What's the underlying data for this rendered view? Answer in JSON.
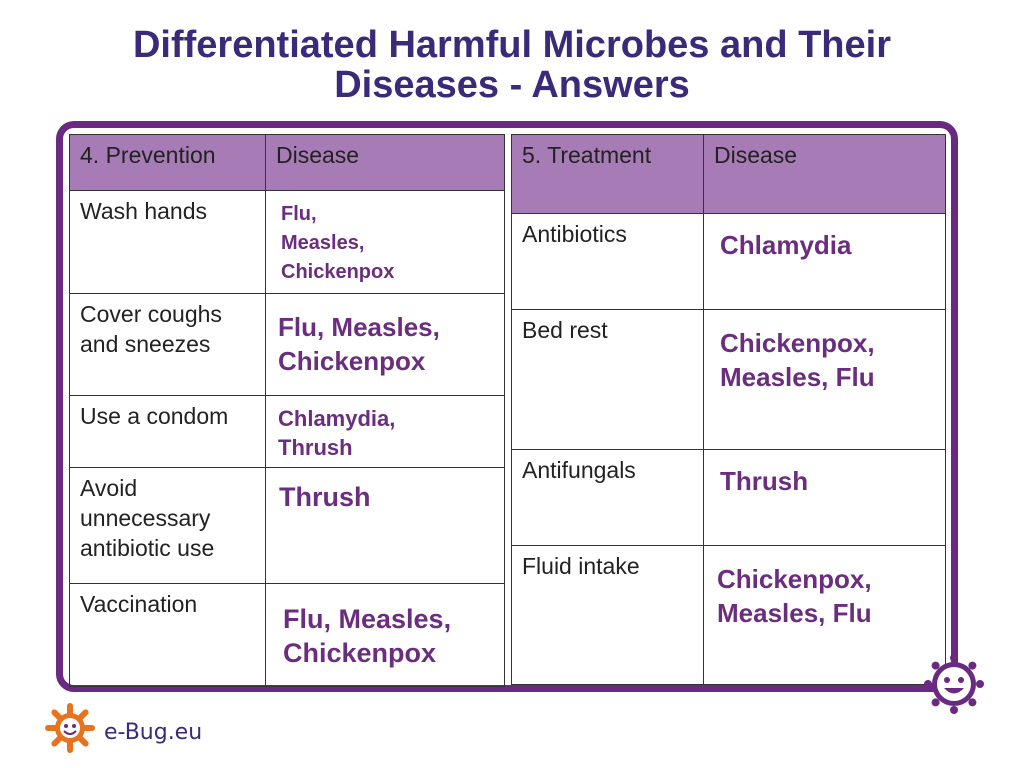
{
  "title": {
    "line1": "Differentiated Harmful Microbes and Their",
    "line2": "Diseases - Answers"
  },
  "prevention_table": {
    "header": [
      "4. Prevention",
      "Disease"
    ],
    "rows": [
      {
        "action": "Wash hands",
        "disease": [
          "Flu,",
          "Measles,",
          "Chickenpox"
        ]
      },
      {
        "action": [
          "Cover coughs",
          "and sneezes"
        ],
        "disease": [
          "Flu, Measles,",
          "Chickenpox"
        ]
      },
      {
        "action": "Use a condom",
        "disease": [
          "Chlamydia,",
          "Thrush"
        ]
      },
      {
        "action": [
          "Avoid",
          "unnecessary",
          "antibiotic use"
        ],
        "disease": "Thrush"
      },
      {
        "action": "Vaccination",
        "disease": [
          "Flu, Measles,",
          "Chickenpox"
        ]
      }
    ]
  },
  "treatment_table": {
    "header": [
      "5. Treatment",
      "Disease"
    ],
    "rows": [
      {
        "action": "Antibiotics",
        "disease": "Chlamydia"
      },
      {
        "action": "Bed rest",
        "disease": [
          "Chickenpox,",
          "Measles, Flu"
        ]
      },
      {
        "action": "Antifungals",
        "disease": "Thrush"
      },
      {
        "action": "Fluid intake",
        "disease": [
          "Chickenpox,",
          "Measles, Flu"
        ]
      }
    ]
  },
  "branding": {
    "site": "e-Bug.eu",
    "logo_icon": "e-bug-gear-logo",
    "badge_icon": "e-bug-smiley-icon"
  },
  "colors": {
    "title": "#3b2a7a",
    "header_fill": "#a77bb5",
    "answer_text": "#6b2d7e",
    "frame": "#6a2a82"
  }
}
